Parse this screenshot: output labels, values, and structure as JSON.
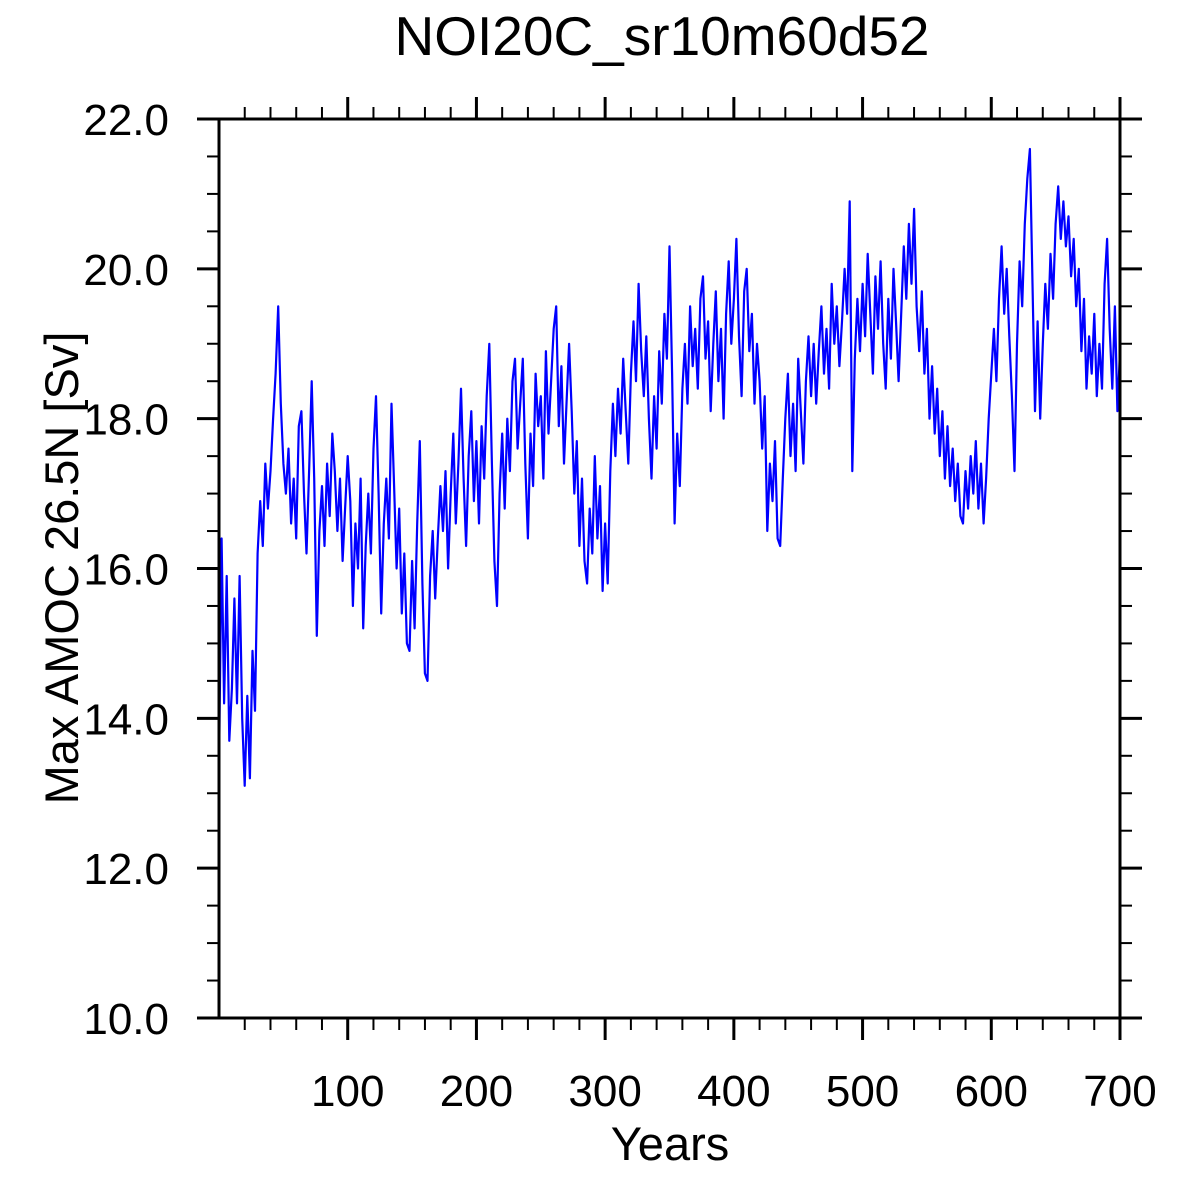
{
  "chart_data": {
    "type": "line",
    "title": "NOI20C_sr10m60d52",
    "xlabel": "Years",
    "ylabel": "Max AMOC 26.5N [Sv]",
    "xlim": [
      0,
      700
    ],
    "ylim": [
      10.0,
      22.0
    ],
    "x_major_ticks": [
      100,
      200,
      300,
      400,
      500,
      600,
      700
    ],
    "x_minor_step": 20,
    "y_major_ticks": [
      10.0,
      12.0,
      14.0,
      16.0,
      18.0,
      20.0,
      22.0
    ],
    "y_minor_step": 0.5,
    "y_tick_decimals": 1,
    "grid": "off",
    "legend": "none",
    "tick_direction": "out",
    "frame_color": "#000000",
    "background_color": "#ffffff",
    "series": [
      {
        "name": "Max AMOC 26.5N",
        "color": "#0000ff",
        "x_start": 0,
        "x_step": 2,
        "values": [
          13.3,
          16.4,
          14.2,
          15.9,
          13.7,
          14.4,
          15.6,
          14.2,
          15.9,
          14.0,
          13.1,
          14.3,
          13.2,
          14.9,
          14.1,
          16.2,
          16.9,
          16.3,
          17.4,
          16.8,
          17.3,
          18.0,
          18.6,
          19.5,
          18.2,
          17.4,
          17.0,
          17.6,
          16.6,
          17.2,
          16.4,
          17.9,
          18.1,
          17.0,
          16.2,
          17.3,
          18.5,
          17.2,
          15.1,
          16.5,
          17.1,
          16.3,
          17.4,
          16.7,
          17.8,
          17.3,
          16.5,
          17.2,
          16.1,
          16.8,
          17.5,
          16.9,
          15.5,
          16.6,
          16.0,
          17.2,
          15.2,
          16.3,
          17.0,
          16.2,
          17.6,
          18.3,
          17.0,
          15.4,
          16.6,
          17.2,
          16.4,
          18.2,
          17.1,
          16.0,
          16.8,
          15.4,
          16.2,
          15.0,
          14.9,
          16.1,
          15.2,
          16.6,
          17.7,
          15.8,
          14.6,
          14.5,
          15.9,
          16.5,
          15.6,
          16.4,
          17.1,
          16.5,
          17.3,
          16.0,
          17.0,
          17.8,
          16.6,
          17.4,
          18.4,
          17.2,
          16.3,
          17.5,
          18.1,
          16.9,
          17.7,
          16.6,
          17.9,
          17.2,
          18.3,
          19.0,
          17.4,
          16.1,
          15.5,
          17.0,
          17.8,
          16.8,
          18.0,
          17.3,
          18.5,
          18.8,
          17.6,
          18.2,
          18.8,
          17.4,
          16.4,
          17.8,
          17.1,
          18.6,
          17.9,
          18.3,
          17.2,
          18.9,
          17.8,
          18.5,
          19.2,
          19.5,
          17.9,
          18.7,
          17.4,
          18.2,
          19.0,
          18.1,
          17.0,
          17.7,
          16.3,
          17.2,
          16.1,
          15.8,
          16.8,
          16.2,
          17.5,
          16.4,
          17.1,
          15.7,
          16.6,
          15.8,
          17.3,
          18.2,
          17.5,
          18.4,
          17.8,
          18.8,
          18.1,
          17.4,
          18.6,
          19.3,
          18.5,
          19.8,
          18.9,
          18.3,
          19.1,
          18.0,
          17.2,
          18.3,
          17.6,
          18.9,
          18.2,
          19.4,
          18.8,
          20.3,
          18.6,
          16.6,
          17.8,
          17.1,
          18.4,
          19.0,
          18.2,
          19.5,
          18.7,
          19.2,
          18.4,
          19.6,
          19.9,
          18.8,
          19.3,
          18.1,
          19.0,
          19.7,
          18.5,
          19.2,
          18.0,
          19.4,
          20.1,
          19.0,
          19.6,
          20.4,
          19.1,
          18.3,
          19.7,
          20.0,
          18.9,
          19.4,
          18.2,
          19.0,
          18.5,
          17.6,
          18.3,
          16.5,
          17.4,
          16.9,
          17.7,
          16.4,
          16.3,
          17.2,
          18.0,
          18.6,
          17.5,
          18.2,
          17.3,
          18.8,
          18.1,
          17.4,
          18.5,
          19.1,
          18.3,
          19.0,
          18.2,
          18.9,
          19.5,
          18.6,
          19.2,
          18.4,
          19.8,
          19.0,
          19.5,
          18.7,
          19.3,
          20.0,
          19.4,
          20.9,
          17.3,
          18.8,
          19.6,
          18.9,
          19.8,
          19.1,
          20.2,
          19.4,
          18.6,
          19.9,
          19.2,
          20.1,
          19.0,
          18.4,
          19.6,
          18.8,
          20.0,
          19.3,
          18.5,
          19.4,
          20.3,
          19.6,
          20.6,
          19.8,
          20.8,
          19.5,
          18.9,
          19.7,
          18.6,
          19.2,
          18.0,
          18.7,
          17.8,
          18.4,
          17.5,
          18.1,
          17.2,
          17.9,
          17.1,
          17.6,
          16.9,
          17.4,
          16.7,
          16.6,
          17.3,
          16.8,
          17.5,
          17.0,
          17.7,
          16.8,
          17.4,
          16.6,
          17.2,
          18.0,
          18.6,
          19.2,
          18.5,
          19.6,
          20.3,
          19.4,
          20.0,
          19.1,
          18.3,
          17.3,
          19.0,
          20.1,
          19.5,
          20.6,
          21.2,
          21.6,
          19.8,
          18.1,
          19.3,
          18.0,
          19.0,
          19.8,
          19.2,
          20.2,
          19.6,
          20.6,
          21.1,
          20.4,
          20.9,
          20.3,
          20.7,
          19.9,
          20.4,
          19.5,
          20.0,
          18.9,
          19.6,
          18.4,
          19.1,
          18.6,
          19.4,
          18.3,
          19.0,
          18.4,
          19.8,
          20.4,
          19.2,
          18.4,
          19.5,
          18.1,
          18.9
        ]
      }
    ]
  }
}
